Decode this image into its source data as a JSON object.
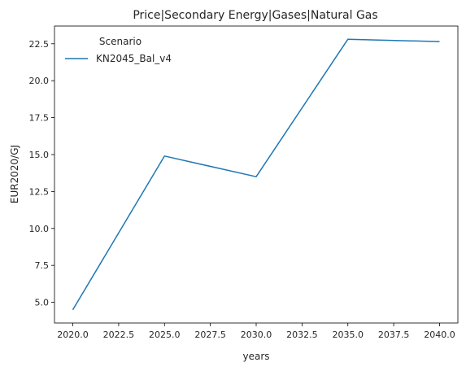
{
  "chart_data": {
    "type": "line",
    "title": "Price|Secondary Energy|Gases|Natural Gas",
    "xlabel": "years",
    "ylabel": "EUR2020/GJ",
    "x": [
      2020,
      2025,
      2030,
      2035,
      2040
    ],
    "series": [
      {
        "name": "KN2045_Bal_v4",
        "values": [
          4.5,
          14.9,
          13.5,
          22.8,
          22.65
        ],
        "color": "#1f77b4"
      }
    ],
    "xticks": [
      2020,
      2022.5,
      2025,
      2027.5,
      2030,
      2032.5,
      2035,
      2037.5,
      2040
    ],
    "xtick_labels": [
      "2020.0",
      "2022.5",
      "2025.0",
      "2027.5",
      "2030.0",
      "2032.5",
      "2035.0",
      "2037.5",
      "2040.0"
    ],
    "yticks": [
      5,
      7.5,
      10,
      12.5,
      15,
      17.5,
      20,
      22.5
    ],
    "ytick_labels": [
      "5.0",
      "7.5",
      "10.0",
      "12.5",
      "15.0",
      "17.5",
      "20.0",
      "22.5"
    ],
    "xlim": [
      2019,
      2041
    ],
    "ylim": [
      3.6,
      23.7
    ],
    "legend": {
      "title": "Scenario",
      "placement": "top-left"
    },
    "grid": false
  }
}
